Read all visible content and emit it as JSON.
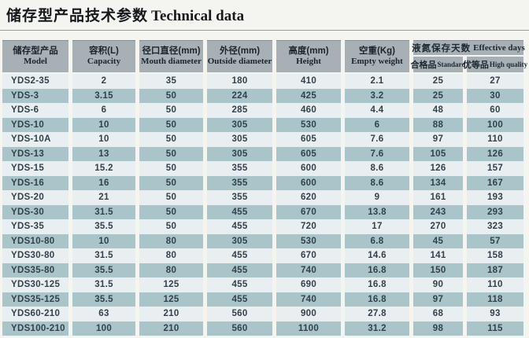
{
  "page": {
    "title_zh": "储存型产品技术参数",
    "title_en": "Technical data"
  },
  "colors": {
    "page_bg": "#f4f4f1",
    "header_bg": "#a7b0b5",
    "row_light": "#e9eff1",
    "row_teal": "#a9c5ca",
    "text_dark": "#32414b"
  },
  "table": {
    "columns": [
      {
        "zh": "储存型产品",
        "en": "Model"
      },
      {
        "zh": "容积(L)",
        "en": "Capacity"
      },
      {
        "zh": "径口直径(mm)",
        "en": "Mouth diameter"
      },
      {
        "zh": "外径(mm)",
        "en": "Outside diameter"
      },
      {
        "zh": "高度(mm)",
        "en": "Height"
      },
      {
        "zh": "空重(Kg)",
        "en": "Empty weight"
      }
    ],
    "effective_days_group": {
      "zh": "液氮保存天数",
      "en": "Effective days",
      "sub": [
        {
          "zh": "合格品",
          "en": "Standard"
        },
        {
          "zh": "优等品",
          "en": "High quality"
        }
      ]
    },
    "rows": [
      {
        "model": "YDS2-35",
        "capacity": "2",
        "mouth": "35",
        "outside": "180",
        "height": "410",
        "weight": "2.1",
        "standard": "25",
        "high": "27"
      },
      {
        "model": "YDS-3",
        "capacity": "3.15",
        "mouth": "50",
        "outside": "224",
        "height": "425",
        "weight": "3.2",
        "standard": "25",
        "high": "30"
      },
      {
        "model": "YDS-6",
        "capacity": "6",
        "mouth": "50",
        "outside": "285",
        "height": "460",
        "weight": "4.4",
        "standard": "48",
        "high": "60"
      },
      {
        "model": "YDS-10",
        "capacity": "10",
        "mouth": "50",
        "outside": "305",
        "height": "530",
        "weight": "6",
        "standard": "88",
        "high": "100"
      },
      {
        "model": "YDS-10A",
        "capacity": "10",
        "mouth": "50",
        "outside": "305",
        "height": "605",
        "weight": "7.6",
        "standard": "97",
        "high": "110"
      },
      {
        "model": "YDS-13",
        "capacity": "13",
        "mouth": "50",
        "outside": "305",
        "height": "605",
        "weight": "7.6",
        "standard": "105",
        "high": "126"
      },
      {
        "model": "YDS-15",
        "capacity": "15.2",
        "mouth": "50",
        "outside": "355",
        "height": "600",
        "weight": "8.6",
        "standard": "126",
        "high": "157"
      },
      {
        "model": "YDS-16",
        "capacity": "16",
        "mouth": "50",
        "outside": "355",
        "height": "600",
        "weight": "8.6",
        "standard": "134",
        "high": "167"
      },
      {
        "model": "YDS-20",
        "capacity": "21",
        "mouth": "50",
        "outside": "355",
        "height": "620",
        "weight": "9",
        "standard": "161",
        "high": "193"
      },
      {
        "model": "YDS-30",
        "capacity": "31.5",
        "mouth": "50",
        "outside": "455",
        "height": "670",
        "weight": "13.8",
        "standard": "243",
        "high": "293"
      },
      {
        "model": "YDS-35",
        "capacity": "35.5",
        "mouth": "50",
        "outside": "455",
        "height": "720",
        "weight": "17",
        "standard": "270",
        "high": "323"
      },
      {
        "model": "YDS10-80",
        "capacity": "10",
        "mouth": "80",
        "outside": "305",
        "height": "530",
        "weight": "6.8",
        "standard": "45",
        "high": "57"
      },
      {
        "model": "YDS30-80",
        "capacity": "31.5",
        "mouth": "80",
        "outside": "455",
        "height": "670",
        "weight": "14.6",
        "standard": "141",
        "high": "158"
      },
      {
        "model": "YDS35-80",
        "capacity": "35.5",
        "mouth": "80",
        "outside": "455",
        "height": "740",
        "weight": "16.8",
        "standard": "150",
        "high": "187"
      },
      {
        "model": "YDS30-125",
        "capacity": "31.5",
        "mouth": "125",
        "outside": "455",
        "height": "690",
        "weight": "16.8",
        "standard": "90",
        "high": "110"
      },
      {
        "model": "YDS35-125",
        "capacity": "35.5",
        "mouth": "125",
        "outside": "455",
        "height": "740",
        "weight": "16.8",
        "standard": "97",
        "high": "118"
      },
      {
        "model": "YDS60-210",
        "capacity": "63",
        "mouth": "210",
        "outside": "560",
        "height": "900",
        "weight": "27.8",
        "standard": "68",
        "high": "93"
      },
      {
        "model": "YDS100-210",
        "capacity": "100",
        "mouth": "210",
        "outside": "560",
        "height": "1100",
        "weight": "31.2",
        "standard": "98",
        "high": "115"
      }
    ]
  }
}
